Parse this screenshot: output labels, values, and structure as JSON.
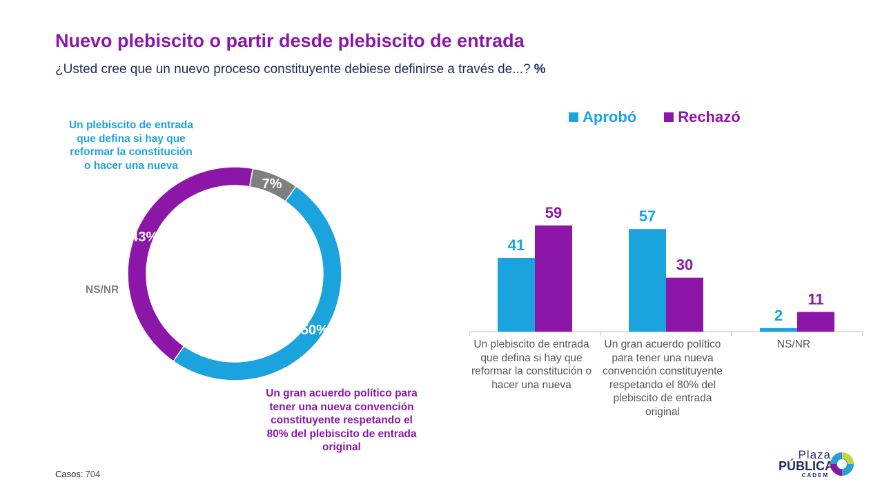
{
  "header": {
    "title": "Nuevo plebiscito o partir desde plebiscito de entrada",
    "subtitle": "¿Usted cree que un nuevo proceso constituyente debiese definirse a través de...?",
    "unit": "%"
  },
  "colors": {
    "blue": "#1aa3dd",
    "purple": "#8b16a8",
    "gray": "#7f7f7f",
    "axis": "#bfbfbf"
  },
  "chart_data": [
    {
      "type": "pie",
      "variant": "donut",
      "slices": [
        {
          "label": "Un plebiscito de entrada que defina si hay que reformar la constitución o hacer una nueva",
          "value": 50,
          "display": "50%",
          "color": "#1aa3dd"
        },
        {
          "label": "Un gran acuerdo político para tener una nueva convención constituyente respetando el 80% del plebiscito de entrada original",
          "value": 43,
          "display": "43%",
          "color": "#8b16a8"
        },
        {
          "label": "NS/NR",
          "value": 7,
          "display": "7%",
          "color": "#7f7f7f"
        }
      ]
    },
    {
      "type": "bar",
      "categories": [
        "Un plebiscito de entrada que defina si hay que reformar la constitución o hacer una nueva",
        "Un gran acuerdo político para tener una nueva convención constituyente respetando el 80% del plebiscito de entrada original",
        "NS/NR"
      ],
      "series": [
        {
          "name": "Aprobó",
          "values": [
            41,
            57,
            2
          ],
          "color": "#1aa3dd"
        },
        {
          "name": "Rechazó",
          "values": [
            59,
            30,
            11
          ],
          "color": "#8b16a8"
        }
      ],
      "ylim": [
        0,
        60
      ],
      "legend": "top"
    }
  ],
  "footer": {
    "casos_label": "Casos",
    "casos_value": "704"
  },
  "logo": {
    "line1": "Plaza",
    "line2": "PÚBLICA",
    "line3": "CADEM"
  }
}
